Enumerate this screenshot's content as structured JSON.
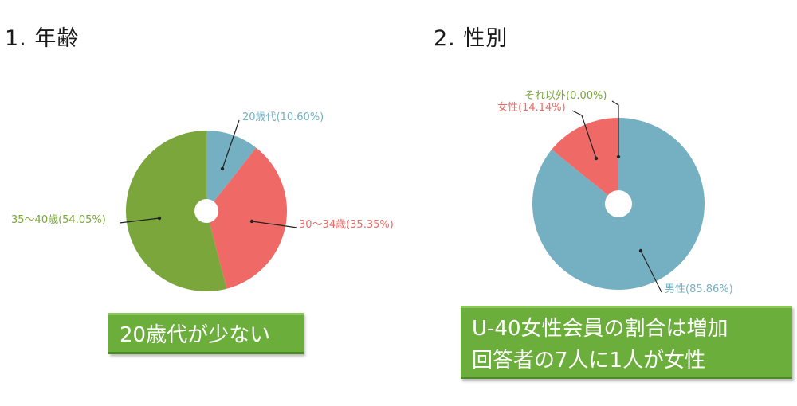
{
  "sections": {
    "age_title": "1. 年齢",
    "gender_title": "2. 性別"
  },
  "callouts": {
    "age": "20歳代が少ない",
    "gender_line1": "U-40女性会員の割合は増加",
    "gender_line2": "回答者の7人に1人が女性"
  },
  "colors": {
    "blue": "#74b0c2",
    "red": "#ef6a66",
    "green": "#7aa63c",
    "callout_bg": "#6cae3c"
  },
  "chart_data": [
    {
      "type": "pie",
      "slices": [
        {
          "label": "20歳代(10.60%)",
          "value": 10.6,
          "color": "#74b0c2"
        },
        {
          "label": "30～34歳(35.35%)",
          "value": 35.35,
          "color": "#ef6a66"
        },
        {
          "label": "35～40歳(54.05%)",
          "value": 54.05,
          "color": "#7aa63c"
        }
      ]
    },
    {
      "type": "pie",
      "slices": [
        {
          "label": "男性(85.86%)",
          "value": 85.86,
          "color": "#74b0c2"
        },
        {
          "label": "女性(14.14%)",
          "value": 14.14,
          "color": "#ef6a66"
        },
        {
          "label": "それ以外(0.00%)",
          "value": 0.0,
          "color": "#7aa63c"
        }
      ]
    }
  ]
}
